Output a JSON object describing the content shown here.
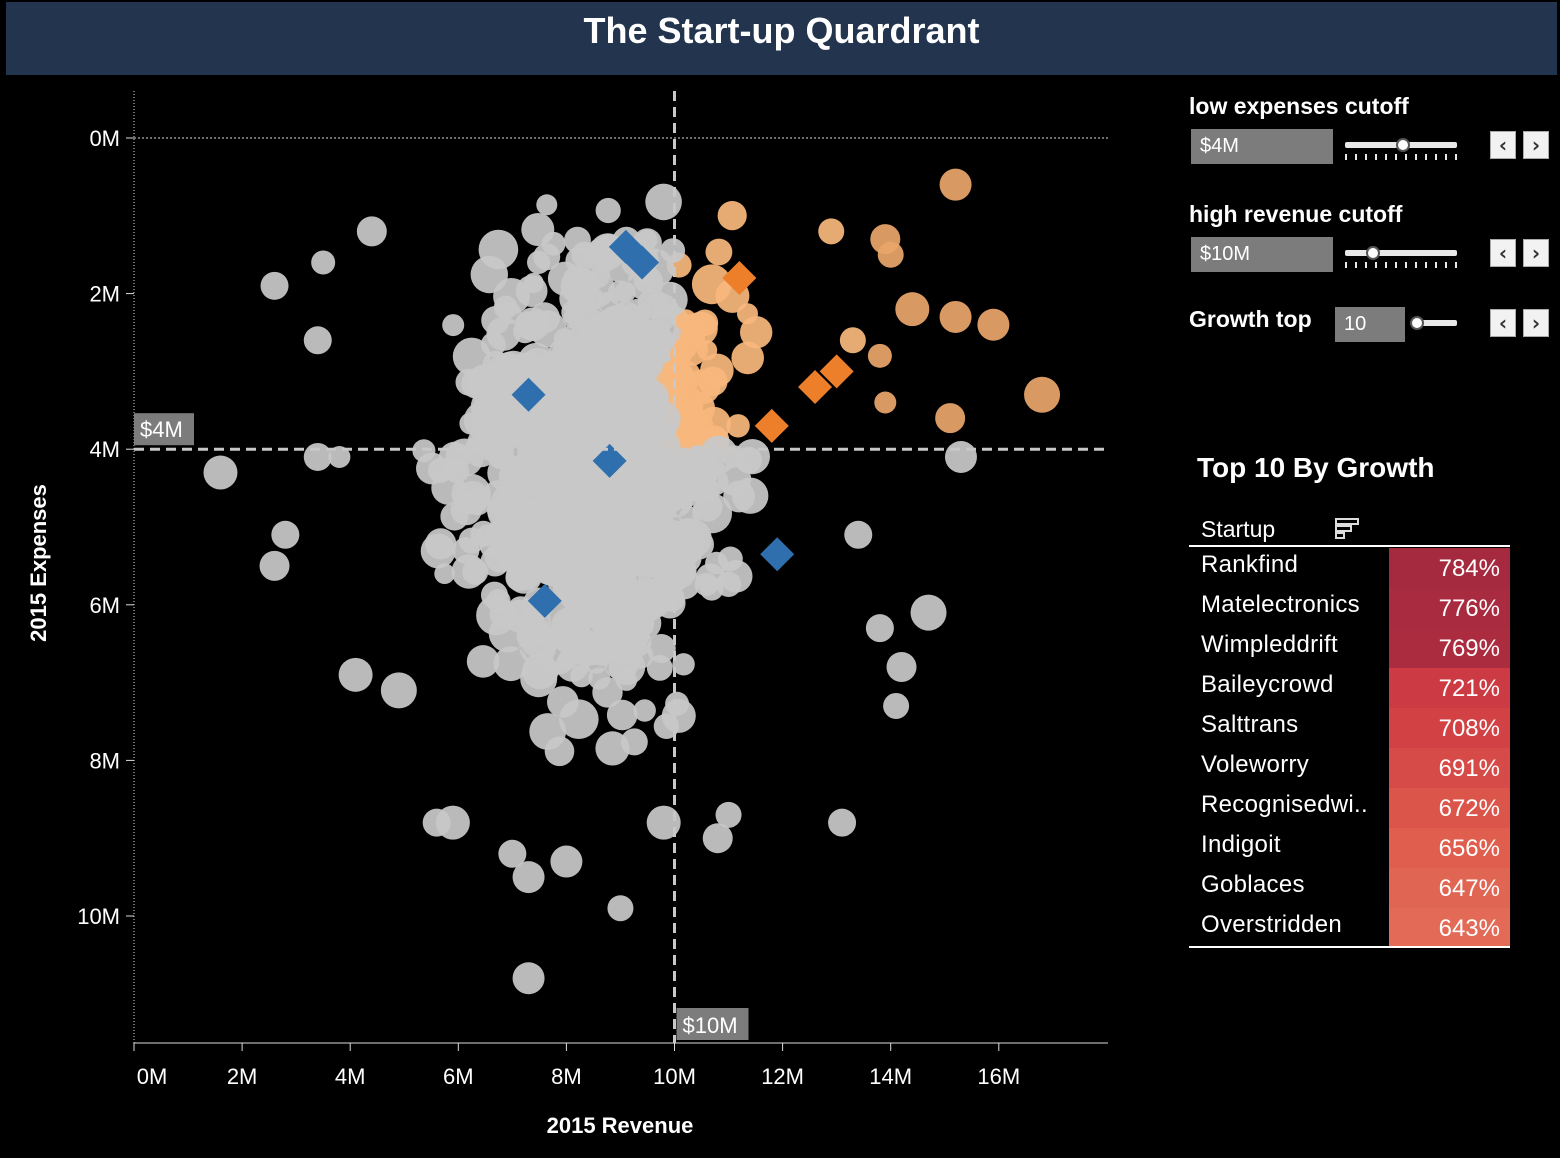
{
  "title": "The Start-up Quardrant",
  "controls": {
    "low_expenses": {
      "label": "low expenses cutoff",
      "value": "$4M",
      "slider_fraction": 0.52
    },
    "high_revenue": {
      "label": "high revenue cutoff",
      "value": "$10M",
      "slider_fraction": 0.25
    },
    "growth_top": {
      "label": "Growth top",
      "value": "10",
      "slider_fraction": 0.1
    }
  },
  "table": {
    "title": "Top 10 By Growth",
    "column": "Startup",
    "rows": [
      {
        "name": "Rankfind",
        "growth": "784%",
        "color": "#a52a3f"
      },
      {
        "name": "Matelectronics",
        "growth": "776%",
        "color": "#a82b3f"
      },
      {
        "name": "Wimpleddrift",
        "growth": "769%",
        "color": "#ac2c3f"
      },
      {
        "name": "Baileycrowd",
        "growth": "721%",
        "color": "#cc3b43"
      },
      {
        "name": "Salttrans",
        "growth": "708%",
        "color": "#d24244"
      },
      {
        "name": "Voleworry",
        "growth": "691%",
        "color": "#d64b47"
      },
      {
        "name": "Recognisedwi..",
        "growth": "672%",
        "color": "#db554a"
      },
      {
        "name": "Indigoit",
        "growth": "656%",
        "color": "#df5e4e"
      },
      {
        "name": "Goblaces",
        "growth": "647%",
        "color": "#e16553"
      },
      {
        "name": "Overstridden",
        "growth": "643%",
        "color": "#e36a56"
      }
    ]
  },
  "chart_data": {
    "type": "scatter",
    "xlabel": "2015 Revenue",
    "ylabel": "2015 Expenses",
    "xlim": [
      0,
      18
    ],
    "ylim": [
      0,
      11.5
    ],
    "x_ticks": [
      "0M",
      "2M",
      "4M",
      "6M",
      "8M",
      "10M",
      "12M",
      "14M",
      "16M"
    ],
    "y_ticks": [
      "0M",
      "2M",
      "4M",
      "6M",
      "8M",
      "10M"
    ],
    "ref_lines": {
      "expenses_cutoff": {
        "value": 4,
        "label": "$4M"
      },
      "revenue_cutoff": {
        "value": 10,
        "label": "$10M"
      }
    },
    "colors": {
      "other": "#c8c8c8",
      "quadrant": "#f7b77c",
      "quadrant_strong": "#e9a569",
      "top_growth_in": "#ee7f2a",
      "top_growth_out": "#2f6fad"
    },
    "outlier_points": [
      {
        "x": 15.2,
        "y": 0.6,
        "s": 16,
        "g": "quadrant_strong"
      },
      {
        "x": 13.9,
        "y": 1.3,
        "s": 15,
        "g": "quadrant_strong"
      },
      {
        "x": 14.0,
        "y": 1.5,
        "s": 13,
        "g": "quadrant_strong"
      },
      {
        "x": 14.4,
        "y": 2.2,
        "s": 17,
        "g": "quadrant_strong"
      },
      {
        "x": 15.2,
        "y": 2.3,
        "s": 16,
        "g": "quadrant_strong"
      },
      {
        "x": 15.9,
        "y": 2.4,
        "s": 16,
        "g": "quadrant_strong"
      },
      {
        "x": 16.8,
        "y": 3.3,
        "s": 18,
        "g": "quadrant_strong"
      },
      {
        "x": 15.1,
        "y": 3.6,
        "s": 15,
        "g": "quadrant_strong"
      },
      {
        "x": 13.9,
        "y": 3.4,
        "s": 11,
        "g": "quadrant_strong"
      },
      {
        "x": 13.8,
        "y": 2.8,
        "s": 12,
        "g": "quadrant_strong"
      },
      {
        "x": 13.3,
        "y": 2.6,
        "s": 13,
        "g": "quadrant"
      },
      {
        "x": 12.9,
        "y": 1.2,
        "s": 13,
        "g": "quadrant"
      },
      {
        "x": 15.3,
        "y": 4.1,
        "s": 16,
        "g": "other"
      },
      {
        "x": 14.7,
        "y": 6.1,
        "s": 18,
        "g": "other"
      },
      {
        "x": 14.2,
        "y": 6.8,
        "s": 15,
        "g": "other"
      },
      {
        "x": 14.1,
        "y": 7.3,
        "s": 13,
        "g": "other"
      },
      {
        "x": 13.1,
        "y": 8.8,
        "s": 14,
        "g": "other"
      },
      {
        "x": 13.4,
        "y": 5.1,
        "s": 14,
        "g": "other"
      },
      {
        "x": 13.8,
        "y": 6.3,
        "s": 14,
        "g": "other"
      },
      {
        "x": 1.6,
        "y": 4.3,
        "s": 17,
        "g": "other"
      },
      {
        "x": 2.6,
        "y": 1.9,
        "s": 14,
        "g": "other"
      },
      {
        "x": 3.5,
        "y": 1.6,
        "s": 12,
        "g": "other"
      },
      {
        "x": 3.4,
        "y": 2.6,
        "s": 14,
        "g": "other"
      },
      {
        "x": 2.8,
        "y": 5.1,
        "s": 14,
        "g": "other"
      },
      {
        "x": 2.6,
        "y": 5.5,
        "s": 15,
        "g": "other"
      },
      {
        "x": 3.4,
        "y": 4.1,
        "s": 14,
        "g": "other"
      },
      {
        "x": 3.8,
        "y": 4.1,
        "s": 11,
        "g": "other"
      },
      {
        "x": 4.4,
        "y": 1.2,
        "s": 15,
        "g": "other"
      },
      {
        "x": 4.1,
        "y": 6.9,
        "s": 17,
        "g": "other"
      },
      {
        "x": 4.9,
        "y": 7.1,
        "s": 18,
        "g": "other"
      },
      {
        "x": 9.0,
        "y": 9.9,
        "s": 13,
        "g": "other"
      },
      {
        "x": 7.3,
        "y": 10.8,
        "s": 16,
        "g": "other"
      },
      {
        "x": 7.3,
        "y": 9.5,
        "s": 16,
        "g": "other"
      },
      {
        "x": 8.0,
        "y": 9.3,
        "s": 16,
        "g": "other"
      },
      {
        "x": 9.8,
        "y": 8.8,
        "s": 17,
        "g": "other"
      },
      {
        "x": 10.8,
        "y": 9.0,
        "s": 15,
        "g": "other"
      },
      {
        "x": 11.0,
        "y": 8.7,
        "s": 13,
        "g": "other"
      },
      {
        "x": 5.6,
        "y": 8.8,
        "s": 14,
        "g": "other"
      },
      {
        "x": 5.9,
        "y": 8.8,
        "s": 17,
        "g": "other"
      },
      {
        "x": 7.0,
        "y": 9.2,
        "s": 14,
        "g": "other"
      }
    ],
    "top_growth": [
      {
        "x": 9.1,
        "y": 1.4,
        "g": "top_growth_out"
      },
      {
        "x": 9.4,
        "y": 1.6,
        "g": "top_growth_out"
      },
      {
        "x": 7.3,
        "y": 3.3,
        "g": "top_growth_out"
      },
      {
        "x": 8.8,
        "y": 4.15,
        "g": "top_growth_out"
      },
      {
        "x": 7.6,
        "y": 5.95,
        "g": "top_growth_out"
      },
      {
        "x": 11.9,
        "y": 5.35,
        "g": "top_growth_out"
      },
      {
        "x": 11.2,
        "y": 1.8,
        "g": "top_growth_in"
      },
      {
        "x": 12.6,
        "y": 3.2,
        "g": "top_growth_in"
      },
      {
        "x": 13.0,
        "y": 3.0,
        "g": "top_growth_in"
      },
      {
        "x": 11.8,
        "y": 3.7,
        "g": "top_growth_in"
      }
    ]
  }
}
